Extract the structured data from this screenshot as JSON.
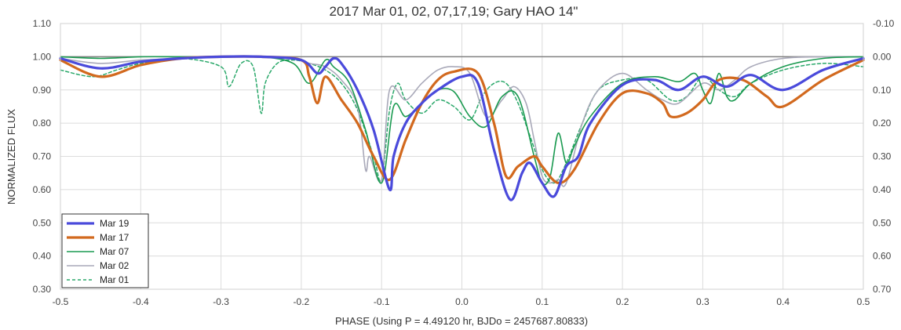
{
  "chart_data": {
    "type": "line",
    "title": "2017 Mar 01, 02, 07,17,19; Gary HAO 14\"",
    "xlabel": "PHASE (Using P = 4.49120 hr, BJDo = 2457687.80833)",
    "ylabel": "NORMALIZED FLUX",
    "xlim": [
      -0.5,
      0.5
    ],
    "ylim": [
      0.3,
      1.1
    ],
    "y2lim": [
      0.7,
      -0.1
    ],
    "grid": true,
    "legend_position": "bottom-left",
    "x_ticks": [
      "-0.5",
      "-0.4",
      "-0.3",
      "-0.2",
      "-0.1",
      "0.0",
      "0.1",
      "0.2",
      "0.3",
      "0.4",
      "0.5"
    ],
    "y_ticks": [
      "0.30",
      "0.40",
      "0.50",
      "0.60",
      "0.70",
      "0.80",
      "0.90",
      "1.00",
      "1.10"
    ],
    "y2_ticks": [
      "0.70",
      "0.60",
      "0.50",
      "0.40",
      "0.30",
      "0.20",
      "0.10",
      "0.00",
      "-0.10"
    ],
    "reference_line_y": 1.0,
    "series": [
      {
        "name": "Mar 19",
        "color": "#4a4adb",
        "style": "solid-thick",
        "x": [
          -0.5,
          -0.45,
          -0.4,
          -0.35,
          -0.3,
          -0.25,
          -0.2,
          -0.18,
          -0.17,
          -0.16,
          -0.15,
          -0.13,
          -0.11,
          -0.09,
          -0.085,
          -0.07,
          -0.05,
          -0.03,
          0.0,
          0.02,
          0.04,
          0.06,
          0.075,
          0.085,
          0.1,
          0.115,
          0.13,
          0.145,
          0.16,
          0.2,
          0.24,
          0.27,
          0.3,
          0.33,
          0.36,
          0.4,
          0.45,
          0.5
        ],
        "y": [
          0.995,
          0.965,
          0.985,
          0.995,
          1.0,
          1.0,
          0.99,
          0.95,
          0.97,
          0.995,
          0.98,
          0.9,
          0.78,
          0.6,
          0.7,
          0.8,
          0.86,
          0.9,
          0.94,
          0.92,
          0.72,
          0.57,
          0.65,
          0.68,
          0.62,
          0.58,
          0.67,
          0.7,
          0.8,
          0.915,
          0.93,
          0.9,
          0.94,
          0.91,
          0.945,
          0.9,
          0.96,
          0.995
        ]
      },
      {
        "name": "Mar 17",
        "color": "#d2691e",
        "style": "solid-thick",
        "x": [
          -0.5,
          -0.45,
          -0.4,
          -0.35,
          -0.3,
          -0.25,
          -0.2,
          -0.19,
          -0.18,
          -0.17,
          -0.15,
          -0.13,
          -0.11,
          -0.09,
          -0.07,
          -0.05,
          -0.03,
          -0.01,
          0.02,
          0.04,
          0.055,
          0.07,
          0.09,
          0.1,
          0.12,
          0.14,
          0.17,
          0.2,
          0.23,
          0.25,
          0.26,
          0.28,
          0.3,
          0.32,
          0.35,
          0.38,
          0.4,
          0.45,
          0.5
        ],
        "y": [
          0.99,
          0.94,
          0.975,
          0.995,
          1.0,
          1.0,
          0.99,
          0.94,
          0.86,
          0.94,
          0.87,
          0.8,
          0.7,
          0.63,
          0.75,
          0.86,
          0.93,
          0.955,
          0.95,
          0.8,
          0.64,
          0.67,
          0.7,
          0.67,
          0.62,
          0.66,
          0.8,
          0.89,
          0.89,
          0.86,
          0.82,
          0.83,
          0.87,
          0.93,
          0.93,
          0.88,
          0.85,
          0.93,
          0.99
        ]
      },
      {
        "name": "Mar 07",
        "color": "#1a9a50",
        "style": "solid",
        "x": [
          -0.5,
          -0.45,
          -0.4,
          -0.35,
          -0.3,
          -0.25,
          -0.21,
          -0.19,
          -0.17,
          -0.16,
          -0.14,
          -0.12,
          -0.1,
          -0.085,
          -0.07,
          -0.05,
          -0.03,
          -0.01,
          0.01,
          0.03,
          0.05,
          0.07,
          0.09,
          0.1,
          0.11,
          0.12,
          0.13,
          0.14,
          0.16,
          0.2,
          0.24,
          0.27,
          0.29,
          0.3,
          0.31,
          0.32,
          0.33,
          0.34,
          0.36,
          0.4,
          0.45,
          0.5
        ],
        "y": [
          1.0,
          0.995,
          1.0,
          1.0,
          1.0,
          1.0,
          0.98,
          0.92,
          0.99,
          0.97,
          0.92,
          0.78,
          0.62,
          0.85,
          0.82,
          0.86,
          0.9,
          0.895,
          0.82,
          0.79,
          0.88,
          0.88,
          0.7,
          0.62,
          0.64,
          0.77,
          0.68,
          0.73,
          0.82,
          0.92,
          0.94,
          0.925,
          0.95,
          0.9,
          0.86,
          0.95,
          0.88,
          0.87,
          0.92,
          0.97,
          0.995,
          1.0
        ]
      },
      {
        "name": "Mar 02",
        "color": "#a9a9b9",
        "style": "solid",
        "x": [
          -0.5,
          -0.45,
          -0.4,
          -0.35,
          -0.3,
          -0.25,
          -0.21,
          -0.19,
          -0.17,
          -0.15,
          -0.13,
          -0.12,
          -0.115,
          -0.1,
          -0.09,
          -0.07,
          -0.05,
          -0.03,
          -0.01,
          0.01,
          0.03,
          0.05,
          0.065,
          0.08,
          0.09,
          0.1,
          0.11,
          0.12,
          0.13,
          0.15,
          0.17,
          0.2,
          0.23,
          0.25,
          0.27,
          0.3,
          0.32,
          0.34,
          0.36,
          0.4,
          0.45,
          0.5
        ],
        "y": [
          0.995,
          0.98,
          0.99,
          0.995,
          1.0,
          1.0,
          0.995,
          0.98,
          0.97,
          0.93,
          0.85,
          0.66,
          0.7,
          0.63,
          0.9,
          0.87,
          0.92,
          0.96,
          0.97,
          0.95,
          0.82,
          0.87,
          0.91,
          0.86,
          0.75,
          0.64,
          0.62,
          0.63,
          0.62,
          0.8,
          0.9,
          0.95,
          0.9,
          0.87,
          0.86,
          0.92,
          0.9,
          0.93,
          0.97,
          0.995,
          1.0,
          1.0
        ]
      },
      {
        "name": "Mar 01",
        "color": "#2aa86a",
        "style": "dashed",
        "x": [
          -0.5,
          -0.46,
          -0.43,
          -0.4,
          -0.35,
          -0.3,
          -0.29,
          -0.275,
          -0.26,
          -0.25,
          -0.245,
          -0.23,
          -0.21,
          -0.19,
          -0.17,
          -0.15,
          -0.13,
          -0.11,
          -0.1,
          -0.09,
          -0.08,
          -0.07,
          -0.05,
          -0.03,
          -0.01,
          0.01,
          0.025,
          0.04,
          0.055,
          0.07,
          0.085,
          0.1,
          0.115,
          0.13,
          0.15,
          0.17,
          0.2,
          0.23,
          0.26,
          0.28,
          0.3,
          0.32,
          0.34,
          0.36,
          0.4,
          0.45,
          0.5
        ],
        "y": [
          0.96,
          0.94,
          0.96,
          0.98,
          0.995,
          0.97,
          0.91,
          0.98,
          0.97,
          0.83,
          0.92,
          0.98,
          0.99,
          0.98,
          0.96,
          0.92,
          0.84,
          0.7,
          0.63,
          0.84,
          0.92,
          0.87,
          0.83,
          0.87,
          0.85,
          0.81,
          0.88,
          0.92,
          0.92,
          0.86,
          0.76,
          0.66,
          0.62,
          0.68,
          0.8,
          0.9,
          0.93,
          0.93,
          0.87,
          0.88,
          0.94,
          0.9,
          0.88,
          0.92,
          0.96,
          0.98,
          0.97
        ]
      }
    ]
  }
}
